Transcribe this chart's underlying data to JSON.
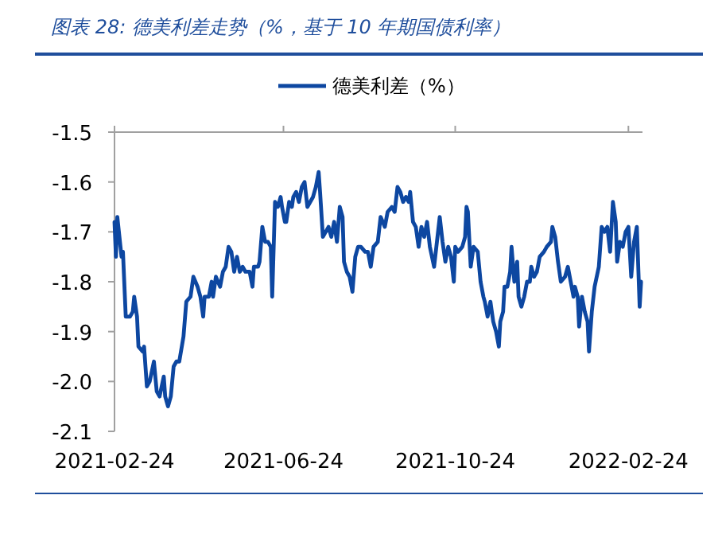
{
  "chart_data": {
    "type": "line",
    "title": "图表 28: 德美利差走势（%，基于 10 年期国债利率）",
    "legend": "top",
    "x": [
      "2021-02-24",
      "2021-02-25",
      "2021-02-26",
      "2021-03-01",
      "2021-03-02",
      "2021-03-04",
      "2021-03-07",
      "2021-03-09",
      "2021-03-10",
      "2021-03-12",
      "2021-03-13",
      "2021-03-16",
      "2021-03-17",
      "2021-03-19",
      "2021-03-21",
      "2021-03-24",
      "2021-03-26",
      "2021-03-28",
      "2021-03-31",
      "2021-04-01",
      "2021-04-03",
      "2021-04-05",
      "2021-04-07",
      "2021-04-09",
      "2021-04-11",
      "2021-04-14",
      "2021-04-16",
      "2021-04-19",
      "2021-04-21",
      "2021-04-24",
      "2021-04-26",
      "2021-04-28",
      "2021-04-29",
      "2021-05-02",
      "2021-05-04",
      "2021-05-05",
      "2021-05-07",
      "2021-05-10",
      "2021-05-12",
      "2021-05-14",
      "2021-05-16",
      "2021-05-18",
      "2021-05-20",
      "2021-05-22",
      "2021-05-24",
      "2021-05-26",
      "2021-05-28",
      "2021-05-31",
      "2021-06-02",
      "2021-06-03",
      "2021-06-06",
      "2021-06-07",
      "2021-06-09",
      "2021-06-11",
      "2021-06-13",
      "2021-06-15",
      "2021-06-16",
      "2021-06-18",
      "2021-06-20",
      "2021-06-22",
      "2021-06-23",
      "2021-06-25",
      "2021-06-26",
      "2021-06-28",
      "2021-06-30",
      "2021-07-01",
      "2021-07-03",
      "2021-07-05",
      "2021-07-07",
      "2021-07-09",
      "2021-07-11",
      "2021-07-13",
      "2021-07-15",
      "2021-07-17",
      "2021-07-19",
      "2021-07-20",
      "2021-07-22",
      "2021-07-24",
      "2021-07-26",
      "2021-07-28",
      "2021-07-30",
      "2021-08-01",
      "2021-08-03",
      "2021-08-05",
      "2021-08-06",
      "2021-08-08",
      "2021-08-10",
      "2021-08-12",
      "2021-08-14",
      "2021-08-16",
      "2021-08-18",
      "2021-08-21",
      "2021-08-23",
      "2021-08-25",
      "2021-08-27",
      "2021-08-30",
      "2021-09-01",
      "2021-09-04",
      "2021-09-06",
      "2021-09-09",
      "2021-09-11",
      "2021-09-13",
      "2021-09-15",
      "2021-09-17",
      "2021-09-19",
      "2021-09-21",
      "2021-09-22",
      "2021-09-24",
      "2021-09-26",
      "2021-09-28",
      "2021-09-30",
      "2021-10-02",
      "2021-10-04",
      "2021-10-06",
      "2021-10-09",
      "2021-10-11",
      "2021-10-13",
      "2021-10-15",
      "2021-10-17",
      "2021-10-19",
      "2021-10-21",
      "2021-10-23",
      "2021-10-24",
      "2021-10-26",
      "2021-10-29",
      "2021-10-31",
      "2021-11-01",
      "2021-11-02",
      "2021-11-04",
      "2021-11-06",
      "2021-11-09",
      "2021-11-11",
      "2021-11-13",
      "2021-11-14",
      "2021-11-16",
      "2021-11-18",
      "2021-11-20",
      "2021-11-22",
      "2021-11-24",
      "2021-11-25",
      "2021-11-27",
      "2021-11-28",
      "2021-11-30",
      "2021-12-02",
      "2021-12-03",
      "2021-12-05",
      "2021-12-07",
      "2021-12-08",
      "2021-12-10",
      "2021-12-12",
      "2021-12-14",
      "2021-12-16",
      "2021-12-17",
      "2021-12-19",
      "2021-12-21",
      "2021-12-23",
      "2021-12-26",
      "2021-12-28",
      "2021-12-31",
      "2022-01-01",
      "2022-01-03",
      "2022-01-05",
      "2022-01-07",
      "2022-01-10",
      "2022-01-12",
      "2022-01-14",
      "2022-01-16",
      "2022-01-17",
      "2022-01-19",
      "2022-01-20",
      "2022-01-22",
      "2022-01-24",
      "2022-01-26",
      "2022-01-27",
      "2022-01-29",
      "2022-01-31",
      "2022-02-03",
      "2022-02-05",
      "2022-02-07",
      "2022-02-09",
      "2022-02-11",
      "2022-02-13",
      "2022-02-15",
      "2022-02-16",
      "2022-02-18",
      "2022-02-20",
      "2022-02-22",
      "2022-02-24",
      "2022-02-26",
      "2022-02-28",
      "2022-03-02",
      "2022-03-04",
      "2022-03-05"
    ],
    "series": [
      {
        "name": "德美利差（%）",
        "color": "#0d47a1",
        "values": [
          -1.68,
          -1.75,
          -1.67,
          -1.75,
          -1.74,
          -1.87,
          -1.87,
          -1.86,
          -1.83,
          -1.87,
          -1.93,
          -1.94,
          -1.93,
          -2.01,
          -2.0,
          -1.96,
          -2.02,
          -2.03,
          -1.99,
          -2.03,
          -2.05,
          -2.03,
          -1.97,
          -1.96,
          -1.96,
          -1.91,
          -1.84,
          -1.83,
          -1.79,
          -1.81,
          -1.83,
          -1.87,
          -1.83,
          -1.83,
          -1.8,
          -1.83,
          -1.79,
          -1.81,
          -1.78,
          -1.77,
          -1.73,
          -1.74,
          -1.78,
          -1.75,
          -1.78,
          -1.77,
          -1.78,
          -1.78,
          -1.81,
          -1.77,
          -1.77,
          -1.76,
          -1.69,
          -1.72,
          -1.72,
          -1.73,
          -1.83,
          -1.64,
          -1.65,
          -1.63,
          -1.65,
          -1.68,
          -1.68,
          -1.64,
          -1.65,
          -1.63,
          -1.62,
          -1.64,
          -1.61,
          -1.6,
          -1.65,
          -1.64,
          -1.63,
          -1.61,
          -1.58,
          -1.62,
          -1.71,
          -1.7,
          -1.69,
          -1.71,
          -1.68,
          -1.72,
          -1.65,
          -1.67,
          -1.76,
          -1.78,
          -1.79,
          -1.82,
          -1.75,
          -1.73,
          -1.73,
          -1.74,
          -1.74,
          -1.77,
          -1.73,
          -1.72,
          -1.67,
          -1.69,
          -1.66,
          -1.65,
          -1.66,
          -1.61,
          -1.62,
          -1.64,
          -1.63,
          -1.64,
          -1.62,
          -1.68,
          -1.69,
          -1.73,
          -1.69,
          -1.71,
          -1.68,
          -1.73,
          -1.77,
          -1.72,
          -1.67,
          -1.72,
          -1.76,
          -1.73,
          -1.75,
          -1.8,
          -1.73,
          -1.74,
          -1.73,
          -1.71,
          -1.65,
          -1.66,
          -1.77,
          -1.73,
          -1.74,
          -1.8,
          -1.83,
          -1.84,
          -1.87,
          -1.84,
          -1.88,
          -1.9,
          -1.93,
          -1.88,
          -1.86,
          -1.81,
          -1.81,
          -1.78,
          -1.73,
          -1.8,
          -1.76,
          -1.83,
          -1.85,
          -1.83,
          -1.8,
          -1.8,
          -1.77,
          -1.79,
          -1.78,
          -1.75,
          -1.74,
          -1.73,
          -1.72,
          -1.69,
          -1.71,
          -1.76,
          -1.8,
          -1.79,
          -1.77,
          -1.8,
          -1.83,
          -1.81,
          -1.83,
          -1.89,
          -1.83,
          -1.86,
          -1.88,
          -1.94,
          -1.86,
          -1.81,
          -1.77,
          -1.69,
          -1.7,
          -1.69,
          -1.74,
          -1.64,
          -1.68,
          -1.76,
          -1.72,
          -1.73,
          -1.7,
          -1.69,
          -1.79,
          -1.72,
          -1.69,
          -1.85,
          -1.8
        ]
      }
    ],
    "xlim": [
      "2021-02-24",
      "2022-03-06"
    ],
    "xticks": [
      "2021-02-24",
      "2021-06-24",
      "2021-10-24",
      "2022-02-24"
    ],
    "ylim": [
      -2.1,
      -1.5
    ],
    "yticks": [
      -2.1,
      {
        "value": -2,
        "label": "-2.0"
      },
      -1.9,
      -1.8,
      -1.7,
      -1.6,
      -1.5
    ]
  }
}
